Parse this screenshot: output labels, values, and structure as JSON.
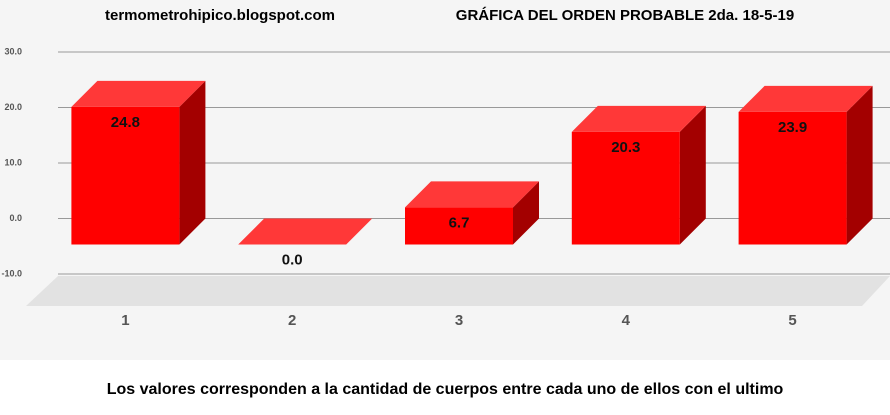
{
  "chart_data": {
    "type": "bar3d",
    "title": "GRÁFICA DEL ORDEN PROBABLE  2da. 18-5-19",
    "subtitle": "termometrohipico.blogspot.com",
    "caption": "Los valores corresponden a la cantidad de cuerpos entre cada uno de ellos con el ultimo",
    "categories": [
      "1",
      "2",
      "3",
      "4",
      "5"
    ],
    "values": [
      24.8,
      0.0,
      6.7,
      20.3,
      23.9
    ],
    "value_labels": [
      "24.8",
      "0.0",
      "6.7",
      "20.3",
      "23.9"
    ],
    "color": "#ff0000",
    "ylim": [
      -10,
      30
    ],
    "yticks": [
      {
        "value": -10,
        "label": "-10.0"
      },
      {
        "value": 0,
        "label": "0.0"
      },
      {
        "value": 10,
        "label": "10.0"
      },
      {
        "value": 20,
        "label": "20.0"
      },
      {
        "value": 30,
        "label": "30.0"
      }
    ],
    "grid": true
  }
}
